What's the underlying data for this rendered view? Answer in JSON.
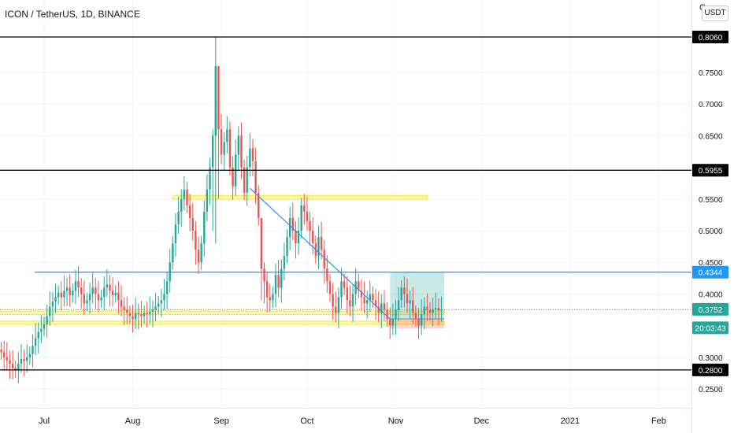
{
  "header": {
    "symbol_title": "ICON / TetherUS, 1D, BINANCE",
    "currency_button": "USDT",
    "corner_mark": "C"
  },
  "price_axis": {
    "ticks": [
      "0.7500",
      "0.7000",
      "0.6500",
      "0.5500",
      "0.5000",
      "0.4500",
      "0.4000",
      "0.3000",
      "0.2500"
    ]
  },
  "time_axis": {
    "labels": [
      "Jul",
      "Aug",
      "Sep",
      "Oct",
      "Nov",
      "Dec",
      "2021",
      "Feb"
    ]
  },
  "horizontal_levels": [
    {
      "price": 0.806,
      "label": "0.8060",
      "color": "#000000"
    },
    {
      "price": 0.5955,
      "label": "0.5955",
      "color": "#000000"
    },
    {
      "price": 0.4344,
      "label": "0.4344",
      "color": "#2196f3"
    },
    {
      "price": 0.28,
      "label": "0.2800",
      "color": "#000000"
    }
  ],
  "current_price": {
    "value": 0.3752,
    "label": "0.3752",
    "countdown": "20:03:43",
    "color": "#26a69a"
  },
  "zones": [
    {
      "from_date": "2020-08-15",
      "to_date": "2020-11-12",
      "top": 0.5555,
      "bottom": 0.5495,
      "color": "#ffeb3b"
    },
    {
      "from_date": "2020-06-06",
      "to_date": "2020-11-18",
      "top": 0.373,
      "bottom": 0.3675,
      "color": "#ffeb3b"
    },
    {
      "from_date": "2020-06-06",
      "to_date": "2020-11-18",
      "top": 0.357,
      "bottom": 0.352,
      "color": "#ffeb3b"
    }
  ],
  "trendline": {
    "from": {
      "date": "2020-09-11",
      "price": 0.567
    },
    "to": {
      "date": "2020-10-30",
      "price": 0.3605
    },
    "color": "#2196f3"
  },
  "position_tool": {
    "from_date": "2020-10-30",
    "to_date": "2020-11-18",
    "entry": 0.3605,
    "target": 0.4344,
    "stop": 0.3455,
    "profit_color": "#26a69a",
    "loss_color": "#ef5350"
  },
  "colors": {
    "up": "#26a69a",
    "down": "#ef5350",
    "grid": "#f0f3fa",
    "axis_text": "#131722"
  },
  "chart_data": {
    "type": "candlestick",
    "title": "ICON / TetherUS, 1D, BINANCE",
    "x_axis": {
      "type": "date",
      "range": [
        "2020-06-01",
        "2021-02-20"
      ],
      "ticks": [
        "Jul",
        "Aug",
        "Sep",
        "Oct",
        "Nov",
        "Dec",
        "2021",
        "Feb"
      ]
    },
    "y_axis": {
      "range": [
        0.2262,
        0.8474
      ],
      "ticks": [
        0.25,
        0.3,
        0.4,
        0.45,
        0.5,
        0.55,
        0.65,
        0.7,
        0.75
      ],
      "position": "right"
    },
    "grid": true,
    "series": [
      {
        "start_date": "2020-06-01",
        "interval": "1D",
        "close": [
          0.315,
          0.317,
          0.315,
          0.312,
          0.318,
          0.316,
          0.313,
          0.31,
          0.308,
          0.305,
          0.3,
          0.306,
          0.31,
          0.314,
          0.312,
          0.308,
          0.3,
          0.295,
          0.29,
          0.283,
          0.28,
          0.29,
          0.297,
          0.294,
          0.3,
          0.305,
          0.318,
          0.33,
          0.34,
          0.345,
          0.352,
          0.365,
          0.38,
          0.388,
          0.395,
          0.402,
          0.395,
          0.405,
          0.41,
          0.398,
          0.405,
          0.42,
          0.41,
          0.4,
          0.385,
          0.39,
          0.4,
          0.41,
          0.4,
          0.39,
          0.395,
          0.41,
          0.415,
          0.405,
          0.398,
          0.402,
          0.39,
          0.38,
          0.375,
          0.37,
          0.365,
          0.36,
          0.37,
          0.368,
          0.365,
          0.37,
          0.368,
          0.372,
          0.375,
          0.38,
          0.385,
          0.39,
          0.4,
          0.42,
          0.45,
          0.48,
          0.51,
          0.53,
          0.55,
          0.565,
          0.54,
          0.52,
          0.5,
          0.47,
          0.45,
          0.48,
          0.53,
          0.565,
          0.6,
          0.65,
          0.76,
          0.66,
          0.62,
          0.64,
          0.66,
          0.6,
          0.57,
          0.62,
          0.65,
          0.6,
          0.56,
          0.6,
          0.63,
          0.61,
          0.56,
          0.52,
          0.44,
          0.42,
          0.395,
          0.39,
          0.4,
          0.43,
          0.41,
          0.44,
          0.46,
          0.49,
          0.52,
          0.5,
          0.48,
          0.5,
          0.54,
          0.53,
          0.515,
          0.5,
          0.48,
          0.46,
          0.49,
          0.47,
          0.44,
          0.42,
          0.4,
          0.38,
          0.37,
          0.395,
          0.42,
          0.41,
          0.39,
          0.38,
          0.4,
          0.42,
          0.405,
          0.395,
          0.385,
          0.39,
          0.4,
          0.39,
          0.38,
          0.37,
          0.385,
          0.375,
          0.36,
          0.35,
          0.36,
          0.375,
          0.39,
          0.41,
          0.4,
          0.385,
          0.39,
          0.37,
          0.36,
          0.35,
          0.368,
          0.38,
          0.375,
          0.37,
          0.376,
          0.378,
          0.374,
          0.3752
        ]
      }
    ],
    "horizontal_levels": [
      0.806,
      0.5955,
      0.4344,
      0.28
    ],
    "last_price": 0.3752
  }
}
